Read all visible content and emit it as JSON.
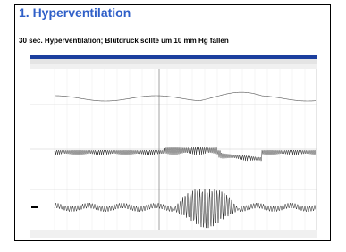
{
  "slide": {
    "title": "1. Hyperventilation",
    "subtitle": "30 sec. Hyperventilation; Blutdruck sollte um 10 mm Hg fallen"
  }
}
